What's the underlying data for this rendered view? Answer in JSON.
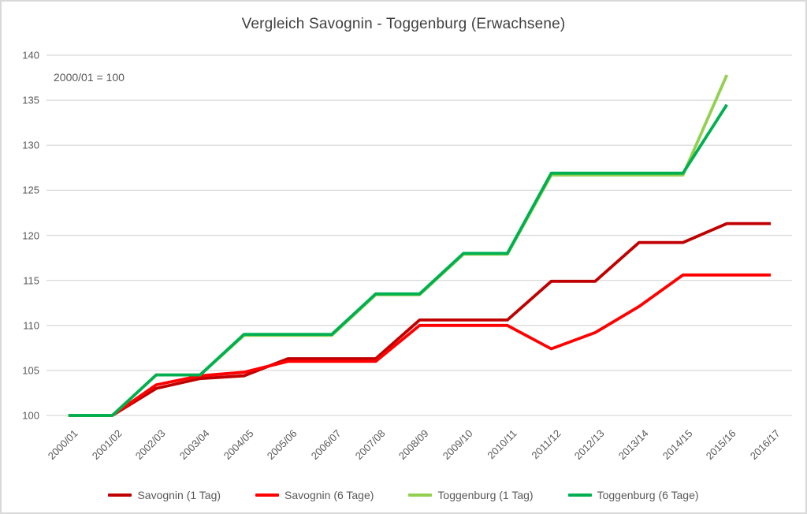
{
  "window": {
    "background": "#ffffff",
    "border_color": "#d9d9d9"
  },
  "chart_data": {
    "type": "line",
    "title": "Vergleich Savognin - Toggenburg (Erwachsene)",
    "annotation": "2000/01 = 100",
    "categories": [
      "2000/01",
      "2001/02",
      "2002/03",
      "2003/04",
      "2004/05",
      "2005/06",
      "2006/07",
      "2007/08",
      "2008/09",
      "2009/10",
      "2010/11",
      "2011/12",
      "2012/13",
      "2013/14",
      "2014/15",
      "2015/16",
      "2016/17"
    ],
    "series": [
      {
        "name": "Savognin (1 Tag)",
        "color": "#C00000",
        "values": [
          100,
          100,
          103.0,
          104.1,
          104.4,
          106.3,
          106.3,
          106.3,
          110.6,
          110.6,
          110.6,
          114.9,
          114.9,
          119.2,
          119.2,
          121.3,
          121.3
        ]
      },
      {
        "name": "Savognin (6 Tage)",
        "color": "#FF0000",
        "values": [
          100,
          100,
          103.4,
          104.4,
          104.8,
          106.0,
          106.0,
          106.0,
          110.0,
          110.0,
          110.0,
          107.4,
          109.2,
          112.1,
          115.6,
          115.6,
          115.6
        ]
      },
      {
        "name": "Toggenburg (1 Tag)",
        "color": "#92D050",
        "values": [
          100,
          100,
          104.5,
          104.5,
          108.9,
          108.9,
          108.9,
          113.4,
          113.4,
          117.9,
          117.9,
          126.7,
          126.7,
          126.7,
          126.7,
          137.8,
          null
        ]
      },
      {
        "name": "Toggenburg (6 Tage)",
        "color": "#00B050",
        "values": [
          100,
          100,
          104.5,
          104.5,
          109.0,
          109.0,
          109.0,
          113.5,
          113.5,
          118.0,
          118.0,
          126.9,
          126.9,
          126.9,
          126.9,
          134.5,
          null
        ]
      }
    ],
    "ylim": [
      100,
      140
    ],
    "ytick_step": 5,
    "yticks": [
      100,
      105,
      110,
      115,
      120,
      125,
      130,
      135,
      140
    ],
    "grid": true,
    "legend_position": "bottom",
    "line_width": 3.8,
    "grid_color": "#d9d9d9",
    "text_color": "#595959",
    "title_color": "#404040"
  }
}
